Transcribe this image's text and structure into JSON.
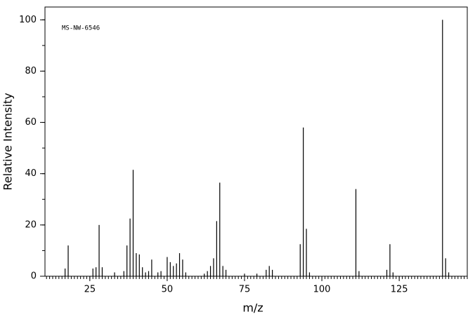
{
  "chart_data": {
    "type": "stem",
    "annotation": "MS-NW-6546",
    "x_label": "m/z",
    "y_label": "Relative Intensity",
    "color": "#000000",
    "x": [
      17,
      18,
      26,
      27,
      28,
      29,
      33,
      36,
      37,
      38,
      39,
      40,
      41,
      42,
      43,
      44,
      45,
      47,
      48,
      50,
      51,
      52,
      53,
      54,
      55,
      56,
      62,
      63,
      64,
      65,
      66,
      67,
      68,
      69,
      75,
      79,
      82,
      83,
      84,
      93,
      94,
      95,
      96,
      111,
      112,
      121,
      122,
      123,
      139,
      140,
      141
    ],
    "values": [
      3,
      12,
      3,
      3.5,
      20,
      3.5,
      1.5,
      2,
      12,
      22.5,
      41.5,
      9,
      8.5,
      3.5,
      1.5,
      2,
      6.5,
      1.5,
      2,
      7.5,
      5.5,
      4,
      5,
      9,
      6.5,
      1.5,
      1,
      2,
      4,
      7,
      21.5,
      36.5,
      4,
      2.5,
      1,
      1,
      2.5,
      4,
      2.5,
      12.5,
      58,
      18.5,
      1.5,
      34,
      2,
      2.5,
      12.5,
      1.5,
      100,
      7,
      1.5
    ],
    "xlim": [
      10.5,
      147
    ],
    "ylim": [
      0,
      105
    ],
    "xticks": [
      25,
      50,
      75,
      100,
      125
    ],
    "yticks": [
      0,
      20,
      40,
      60,
      80,
      100
    ]
  }
}
